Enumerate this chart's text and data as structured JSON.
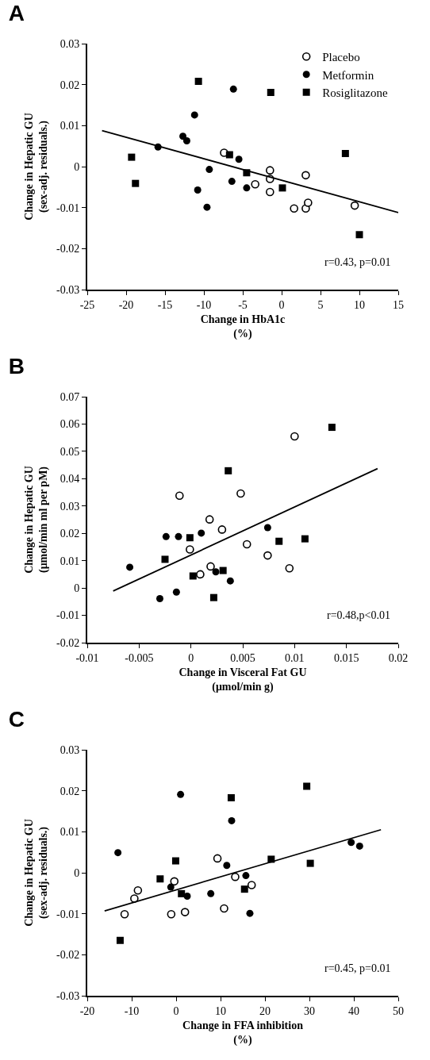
{
  "chart_data": [
    {
      "type": "scatter",
      "title": "A",
      "xlabel": "Change in HbA1c\n(%)",
      "ylabel": "Change in Hepatic GU\n(sex-adj. residuals.)",
      "xlim": [
        -25,
        15
      ],
      "xticks": [
        -25,
        -20,
        -15,
        -10,
        -5,
        0,
        5,
        10,
        15
      ],
      "ylim": [
        -0.03,
        0.03
      ],
      "yticks": [
        -0.03,
        -0.02,
        -0.01,
        0,
        0.01,
        0.02,
        0.03
      ],
      "grid": false,
      "legend": "top right",
      "annotations": [
        "r=0.43, p=0.01"
      ],
      "series": [
        {
          "name": "Placebo",
          "color": "#ffffff",
          "marker": "circle",
          "x": [
            -7.4,
            -1.5,
            -1.5,
            -1.5,
            -3.4,
            3.1,
            1.6,
            3.1,
            3.4,
            9.4
          ],
          "values": [
            0.0034,
            -0.0009,
            -0.003,
            -0.0062,
            -0.0043,
            -0.0021,
            -0.0102,
            -0.0102,
            -0.0088,
            -0.0095
          ]
        },
        {
          "name": "Metformin",
          "color": "#000000",
          "marker": "circle",
          "x": [
            -15.9,
            -11.2,
            -12.7,
            -12.2,
            -10.8,
            -9.6,
            -9.3,
            -6.2,
            -6.4,
            -5.5,
            -4.5
          ],
          "values": [
            0.0048,
            0.0126,
            0.0074,
            0.0063,
            -0.0057,
            -0.0099,
            -0.0007,
            0.0189,
            -0.0036,
            0.0018,
            -0.0052
          ]
        },
        {
          "name": "Rosiglitazone",
          "color": "#000000",
          "marker": "square",
          "x": [
            -19.3,
            -18.8,
            -10.7,
            -6.7,
            -4.5,
            -1.4,
            0.1,
            8.2,
            10.0
          ],
          "values": [
            0.0023,
            -0.0041,
            0.0208,
            0.0029,
            -0.0015,
            0.0181,
            -0.0052,
            0.0032,
            -0.0166
          ]
        },
        {
          "type": "line",
          "color": "#000000",
          "marker": "none",
          "line_style": "solid",
          "x": [
            -23.1,
            15
          ],
          "values": [
            0.0088,
            -0.0112
          ]
        }
      ]
    },
    {
      "type": "scatter",
      "title": "B",
      "xlabel": "Change in Visceral Fat GU\n(μmol/min g)",
      "ylabel": "Change in Hepatic GU\n(μmol/min ml per pM)",
      "xlim": [
        -0.01,
        0.02
      ],
      "xticks": [
        -0.01,
        -0.005,
        0,
        0.005,
        0.01,
        0.015,
        0.02
      ],
      "ylim": [
        -0.02,
        0.07
      ],
      "yticks": [
        -0.02,
        -0.01,
        0,
        0.01,
        0.02,
        0.03,
        0.04,
        0.05,
        0.06,
        0.07
      ],
      "grid": false,
      "annotations": [
        "r=0.48,p<0.01"
      ],
      "series": [
        {
          "color": "#ffffff",
          "marker": "circle",
          "x": [
            -0.0011,
            -0.0001,
            0.0009,
            0.0018,
            0.0019,
            0.003,
            0.0048,
            0.0054,
            0.0074,
            0.0095,
            0.01
          ],
          "values": [
            0.0338,
            0.0141,
            0.005,
            0.0251,
            0.0079,
            0.0214,
            0.0346,
            0.016,
            0.0119,
            0.0072,
            0.0555
          ]
        },
        {
          "color": "#000000",
          "marker": "circle",
          "x": [
            -0.0059,
            -0.003,
            -0.0024,
            -0.0014,
            -0.0012,
            0.001,
            0.0024,
            0.0038,
            0.0074
          ],
          "values": [
            0.0076,
            -0.0039,
            0.0188,
            -0.0015,
            0.0188,
            0.0201,
            0.0059,
            0.0026,
            0.0221
          ]
        },
        {
          "color": "#000000",
          "marker": "square",
          "x": [
            -0.0025,
            -0.0001,
            0.0002,
            0.0022,
            0.0031,
            0.0036,
            0.0085,
            0.011,
            0.0136
          ],
          "values": [
            0.0105,
            0.0184,
            0.0044,
            -0.0035,
            0.0064,
            0.0429,
            0.0171,
            0.018,
            0.0588
          ]
        },
        {
          "type": "line",
          "color": "#000000",
          "marker": "none",
          "line_style": "solid",
          "x": [
            -0.0075,
            0.018
          ],
          "values": [
            -0.0011,
            0.0437
          ]
        }
      ]
    },
    {
      "type": "scatter",
      "title": "C",
      "xlabel": "Change in FFA inhibition\n(%)",
      "ylabel": "Change in Hepatic GU\n(sex-adj. residuals.)",
      "xlim": [
        -20,
        50
      ],
      "xticks": [
        -20,
        -10,
        0,
        10,
        20,
        30,
        40,
        50
      ],
      "ylim": [
        -0.03,
        0.03
      ],
      "yticks": [
        -0.03,
        -0.02,
        -0.01,
        0,
        0.01,
        0.02,
        0.03
      ],
      "grid": false,
      "annotations": [
        "r=0.45, p=0.01"
      ],
      "series": [
        {
          "color": "#ffffff",
          "marker": "circle",
          "x": [
            -11.6,
            -9.4,
            -8.6,
            -1.1,
            -0.4,
            2.0,
            9.3,
            10.8,
            13.3,
            17.0
          ],
          "values": [
            -0.0101,
            -0.0063,
            -0.0043,
            -0.0101,
            -0.0021,
            -0.0096,
            0.0035,
            -0.0087,
            -0.001,
            -0.003
          ]
        },
        {
          "color": "#000000",
          "marker": "circle",
          "x": [
            -13.1,
            -1.2,
            1.0,
            2.5,
            7.8,
            11.4,
            12.5,
            15.7,
            16.6,
            39.4,
            41.3
          ],
          "values": [
            0.0049,
            -0.0035,
            0.0191,
            -0.0057,
            -0.0051,
            0.0018,
            0.0127,
            -0.0007,
            -0.0099,
            0.0074,
            0.0065
          ]
        },
        {
          "color": "#000000",
          "marker": "square",
          "x": [
            -12.6,
            -3.6,
            -0.1,
            1.2,
            12.4,
            15.4,
            21.4,
            29.4,
            30.2
          ],
          "values": [
            -0.0165,
            -0.0015,
            0.0029,
            -0.0051,
            0.0183,
            -0.004,
            0.0033,
            0.0211,
            0.0023
          ]
        },
        {
          "type": "line",
          "color": "#000000",
          "marker": "none",
          "line_style": "solid",
          "x": [
            -16.1,
            46.1
          ],
          "values": [
            -0.0093,
            0.0105
          ]
        }
      ]
    }
  ]
}
